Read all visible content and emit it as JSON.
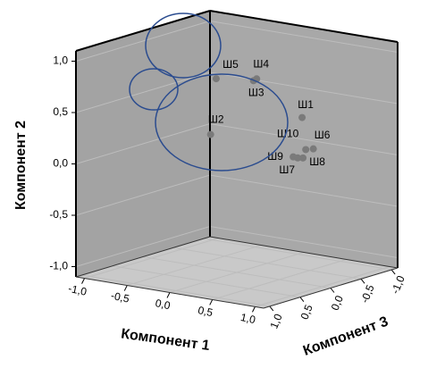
{
  "chart_data": {
    "type": "scatter3d",
    "x_label": "Компонент 1",
    "y_label": "Компонент 2",
    "z_label": "Компонент 3",
    "labels": [
      "Ш1",
      "Ш2",
      "Ш3",
      "Ш4",
      "Ш5",
      "Ш6",
      "Ш7",
      "Ш8",
      "Ш9",
      "Ш10"
    ],
    "x": [
      0.73,
      -0.05,
      0.16,
      0.19,
      -0.12,
      0.44,
      0.55,
      0.59,
      0.49,
      0.53
    ],
    "y": [
      0.5,
      0.3,
      0.78,
      0.8,
      0.8,
      0.05,
      0.05,
      0.05,
      0.05,
      0.1
    ],
    "z": [
      -0.05,
      0.36,
      -0.05,
      -0.06,
      0.17,
      -0.64,
      -0.23,
      -0.26,
      -0.24,
      -0.39
    ],
    "color": "#7a7a7a",
    "xlim": [
      -1.1,
      1.1
    ],
    "ylim": [
      -1.1,
      1.1
    ],
    "zlim": [
      -1.1,
      1.1
    ],
    "xticks": [
      {
        "value": -1,
        "label": "-1,0"
      },
      {
        "value": -0.5,
        "label": "-0,5"
      },
      {
        "value": 0,
        "label": "0,0"
      },
      {
        "value": 0.5,
        "label": "0,5"
      },
      {
        "value": 1,
        "label": "1,0"
      }
    ],
    "yticks": [
      {
        "value": -1,
        "label": "-1,0"
      },
      {
        "value": -0.5,
        "label": "-0,5"
      },
      {
        "value": 0,
        "label": "0,0"
      },
      {
        "value": 0.5,
        "label": "0,5"
      },
      {
        "value": 1,
        "label": "1,0"
      }
    ],
    "zticks": [
      {
        "value": -1,
        "label": "-1,0"
      },
      {
        "value": -0.5,
        "label": "-0,5"
      },
      {
        "value": 0,
        "label": "0,0"
      },
      {
        "value": 0.5,
        "label": "0,5"
      },
      {
        "value": 1,
        "label": "1,0"
      }
    ],
    "grid": true
  }
}
